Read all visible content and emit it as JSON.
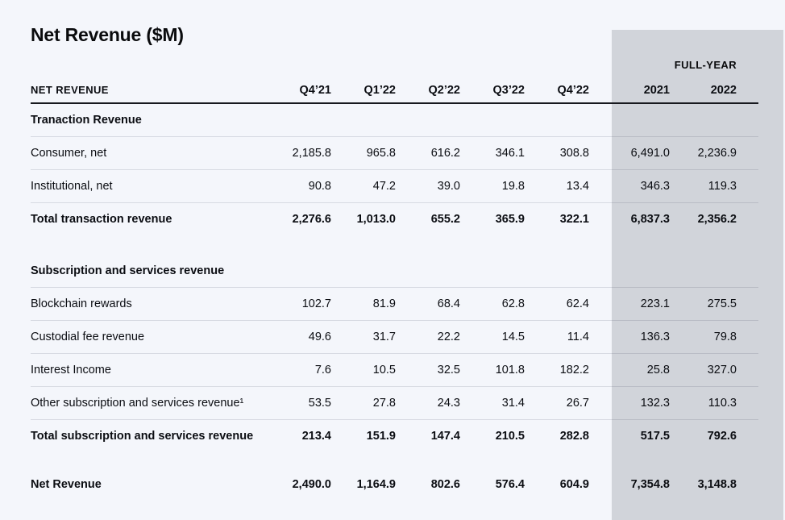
{
  "title": "Net Revenue ($M)",
  "colors": {
    "page_background": "#f4f6fb",
    "fullyear_band": "#d1d4da",
    "text": "#0b0d12",
    "heavy_rule": "#17191e"
  },
  "chart_data": {
    "type": "table",
    "title": "Net Revenue ($M)",
    "column_group": {
      "label": "FULL-YEAR",
      "columns": [
        "2021",
        "2022"
      ]
    },
    "columns": [
      "NET REVENUE",
      "Q4’21",
      "Q1’22",
      "Q2’22",
      "Q3’22",
      "Q4’22",
      "2021",
      "2022"
    ],
    "rows": [
      {
        "type": "section",
        "label": "Tranaction Revenue",
        "values": [
          "",
          "",
          "",
          "",
          "",
          "",
          ""
        ]
      },
      {
        "type": "data",
        "label": "Consumer, net",
        "values": [
          "2,185.8",
          "965.8",
          "616.2",
          "346.1",
          "308.8",
          "6,491.0",
          "2,236.9"
        ]
      },
      {
        "type": "data",
        "label": "Institutional, net",
        "values": [
          "90.8",
          "47.2",
          "39.0",
          "19.8",
          "13.4",
          "346.3",
          "119.3"
        ]
      },
      {
        "type": "total",
        "label": "Total transaction revenue",
        "values": [
          "2,276.6",
          "1,013.0",
          "655.2",
          "365.9",
          "322.1",
          "6,837.3",
          "2,356.2"
        ]
      },
      {
        "type": "section",
        "label": "Subscription and services revenue",
        "values": [
          "",
          "",
          "",
          "",
          "",
          "",
          ""
        ]
      },
      {
        "type": "data",
        "label": "Blockchain rewards",
        "values": [
          "102.7",
          "81.9",
          "68.4",
          "62.8",
          "62.4",
          "223.1",
          "275.5"
        ]
      },
      {
        "type": "data",
        "label": "Custodial fee revenue",
        "values": [
          "49.6",
          "31.7",
          "22.2",
          "14.5",
          "11.4",
          "136.3",
          "79.8"
        ]
      },
      {
        "type": "data",
        "label": "Interest Income",
        "values": [
          "7.6",
          "10.5",
          "32.5",
          "101.8",
          "182.2",
          "25.8",
          "327.0"
        ]
      },
      {
        "type": "data",
        "label": "Other subscription and services revenue¹",
        "values": [
          "53.5",
          "27.8",
          "24.3",
          "31.4",
          "26.7",
          "132.3",
          "110.3"
        ]
      },
      {
        "type": "total",
        "label": "Total subscription and services revenue",
        "values": [
          "213.4",
          "151.9",
          "147.4",
          "210.5",
          "282.8",
          "517.5",
          "792.6"
        ]
      },
      {
        "type": "total",
        "label": "Net Revenue",
        "values": [
          "2,490.0",
          "1,164.9",
          "802.6",
          "576.4",
          "604.9",
          "7,354.8",
          "3,148.8"
        ]
      }
    ]
  }
}
